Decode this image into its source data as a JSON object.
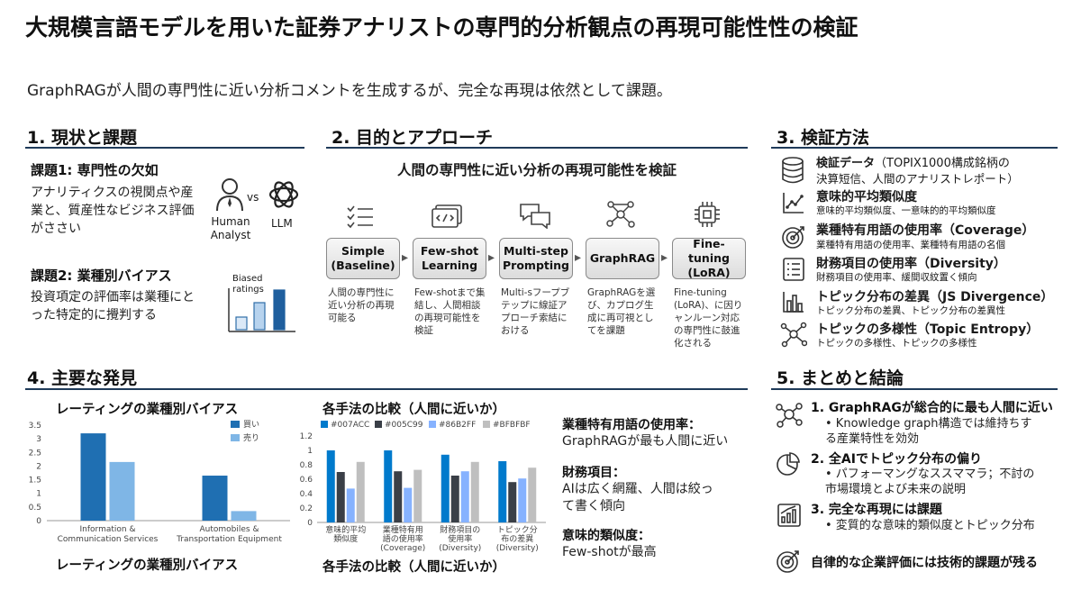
{
  "header": {
    "title": "大規模言語モデルを用いた証券アナリストの専門的分析観点の再現可能性性の検証",
    "subtitle": "GraphRAGが人間の専門性に近い分析コメントを生成するが、完全な再現は依然として課題。"
  },
  "sec1": {
    "heading": "1. 現状と課題",
    "issue1_title": "課題1: 専門性の欠如",
    "issue1_text": "アナリティクスの視関点や産業と、質産性なビジネス評価がささい",
    "human_label": "Human Analyst",
    "vs": "vs",
    "llm_label": "LLM",
    "issue2_title": "課題2: 業種別バイアス",
    "issue2_text": "投資項定の評価率は業種にとった特定的に攪判する",
    "biased_label": "Biased ratings"
  },
  "sec2": {
    "heading": "2. 目的とアプローチ",
    "goal": "人間の専門性に近い分析の再現可能性を検証",
    "steps": [
      {
        "label": "Simple (Baseline)",
        "desc": "人間の専門性に近い分析の再現可能る"
      },
      {
        "label": "Few-shot Learning",
        "desc": "Few-shotまで集結し、人間相談の再現可能性を検証"
      },
      {
        "label": "Multi-step Prompting",
        "desc": "Multi-sフープブテップに線証アプローチ索結における"
      },
      {
        "label": "GraphRAG",
        "desc": "GraphRAGを選び、カプログ生成に再可視としてを課題"
      },
      {
        "label": "Fine-tuning (LoRA)",
        "desc": "Fine-tuning (LoRA)、に因りャンルーン対応の専門性に鼓進化される"
      }
    ]
  },
  "sec3": {
    "heading": "3. 検証方法",
    "items": [
      {
        "title": "検証データ",
        "suffix": "（TOPIX1000構成銘柄の",
        "desc": "決算短信、人間のアナリストレポート）",
        "icon": "database-icon"
      },
      {
        "title": "意味的平均類似度",
        "suffix": "",
        "desc": "意味的平均類似度、一意味的的平均類似度",
        "icon": "scatter-chart-icon"
      },
      {
        "title": "業種特有用語の使用率（Coverage）",
        "suffix": "",
        "desc": "業種特有用語の使用率、業種特有用語の名個",
        "icon": "target-icon"
      },
      {
        "title": "財務項目の使用率（Diversity）",
        "suffix": "",
        "desc": "財務項目の使用率、緩間収紋置く傾向",
        "icon": "document-list-icon"
      },
      {
        "title": "トピック分布の差異（JS Divergence）",
        "suffix": "",
        "desc": "トピック分布の差異、トピック分布の差異性",
        "icon": "bar-chart-icon"
      },
      {
        "title": "トピックの多様性（Topic Entropy）",
        "suffix": "",
        "desc": "トピックの多様性、トピックの多様性",
        "icon": "network-icon"
      }
    ]
  },
  "sec4": {
    "heading": "4. 主要な発見",
    "chart1_title": "レーティングの業種別バイアス",
    "chart1_caption": "レーティングの業種別バイアス",
    "chart2_title": "各手法の比較（人間に近いか）",
    "chart2_caption": "各手法の比較（人間に近いか）",
    "findings": [
      {
        "head": "業種特有用語の使用率：",
        "text": "GraphRAGが最も人間に近い"
      },
      {
        "head": "財務項目：",
        "text": "AIは広く網羅、人間は絞って書く傾向"
      },
      {
        "head": "意味的類似度：",
        "text": "Few-shotが最高"
      }
    ]
  },
  "sec5": {
    "heading": "5. まとめと結論",
    "items": [
      {
        "title": "1. GraphRAGが総合的に最も人間に近い",
        "bullet": "• Knowledge graph構造では維持ちする産業特性を効効",
        "icon": "knowledge-graph-icon"
      },
      {
        "title": "2. 全AIでトピック分布の偏り",
        "bullet": "• パフォーマングなススママラ；不討の市場環境とよび未来の説明",
        "icon": "pie-chart-icon"
      },
      {
        "title": "3. 完全な再現には課題",
        "bullet": "• 変質的な意味的類似度とトピック分布",
        "icon": "growth-chart-icon"
      }
    ],
    "conclusion": "自律的な企業評価には技術的課題が残る",
    "conclusion_icon": "target-icon"
  },
  "chart_data": [
    {
      "type": "bar",
      "title": "レーティングの業種別バイアス",
      "categories": [
        "Information & Communication Services",
        "Automobiles & Transportation Equipment"
      ],
      "series": [
        {
          "name": "買い",
          "values": [
            3.2,
            1.65
          ],
          "color": "#1F6FB2"
        },
        {
          "name": "売り",
          "values": [
            2.15,
            0.35
          ],
          "color": "#7FB6E6"
        }
      ],
      "ylim": [
        0,
        3.5
      ],
      "yticks": [
        0,
        0.5,
        1,
        1.5,
        2,
        2.5,
        3,
        3.5
      ],
      "legend": "top-right",
      "grid": false
    },
    {
      "type": "bar",
      "title": "各手法の比較（人間に近いか）",
      "categories": [
        "意味的平均類似度",
        "業種特有用語の使用率 (Coverage)",
        "財務項目の使用率 (Diversity)",
        "トピック分布の差異 (Diversity)"
      ],
      "series": [
        {
          "name": "#007ACC",
          "values": [
            1.0,
            1.0,
            0.94,
            0.85
          ],
          "color": "#007ACC"
        },
        {
          "name": "#005C99",
          "values": [
            0.7,
            0.71,
            0.65,
            0.56
          ],
          "color": "#3a3f47"
        },
        {
          "name": "#86B2FF",
          "values": [
            0.47,
            0.48,
            0.71,
            0.61
          ],
          "color": "#86B2FF"
        },
        {
          "name": "#BFBFBF",
          "values": [
            0.84,
            0.73,
            0.84,
            0.76
          ],
          "color": "#BFBFBF"
        }
      ],
      "ylim": [
        0,
        1.2
      ],
      "yticks": [
        0,
        0.2,
        0.4,
        0.6,
        0.8,
        1,
        1.2
      ],
      "legend": "top",
      "grid": false
    }
  ]
}
